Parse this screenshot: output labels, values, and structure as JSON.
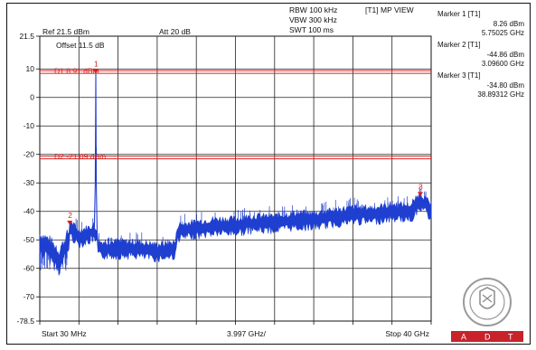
{
  "header": {
    "ref": "Ref 21.5 dBm",
    "att": "Att  20 dB",
    "rbw": "RBW 100 kHz",
    "vbw": "VBW 300 kHz",
    "swt": "SWT 100 ms",
    "trace_mode": "[T1] MP VIEW",
    "offset": "Offset 11.5 dB"
  },
  "markers": [
    {
      "title": "Marker 1 [T1]",
      "level": "8.26 dBm",
      "freq": "5.75025 GHz",
      "label": "1",
      "x_ghz": 5.75,
      "y_dbm": 8.26
    },
    {
      "title": "Marker 2 [T1]",
      "level": "-44.86 dBm",
      "freq": "3.09600 GHz",
      "label": "2",
      "x_ghz": 3.096,
      "y_dbm": -44.86
    },
    {
      "title": "Marker 3 [T1]",
      "level": "-34.80 dBm",
      "freq": "38.89312 GHz",
      "label": "3",
      "x_ghz": 38.89,
      "y_dbm": -34.8
    }
  ],
  "chart_data": {
    "type": "line",
    "xlim": [
      0.03,
      40
    ],
    "ylim": [
      -78.5,
      21.5
    ],
    "yticks": [
      21.5,
      10,
      0,
      -10,
      -20,
      -30,
      -40,
      -50,
      -60,
      -70,
      -78.5
    ],
    "ytick_labels": [
      "21.5",
      "10",
      "0",
      "-10",
      "-20",
      "-30",
      "-40",
      "-50",
      "-60",
      "-70",
      "-78.5"
    ],
    "x_start_label": "Start 30 MHz",
    "x_div_label": "3.997 GHz/",
    "x_stop_label": "Stop 40 GHz",
    "grid": true,
    "limit_lines": [
      {
        "name": "D1 8.91 dBm",
        "value": 8.91
      },
      {
        "name": "D2 -21.09 dBm",
        "value": -21.09
      }
    ],
    "series": [
      {
        "values_x": [
          0.03,
          1.0,
          2.0,
          3.0,
          3.096,
          4.0,
          5.0,
          5.6,
          5.75,
          5.9,
          6.5,
          8.0,
          10.0,
          12.0,
          13.9,
          14.1,
          16.0,
          18.0,
          20.0,
          22.0,
          24.0,
          26.0,
          28.0,
          30.0,
          32.0,
          34.0,
          36.0,
          38.0,
          38.89,
          40.0
        ],
        "values_y": [
          -50,
          -52,
          -56,
          -49,
          -44.86,
          -48,
          -47,
          -46,
          8.26,
          -52,
          -52,
          -52,
          -52,
          -53,
          -52,
          -46,
          -45,
          -44,
          -44,
          -43,
          -43,
          -42,
          -42,
          -41,
          -40,
          -40,
          -39,
          -39,
          -34.8,
          -39
        ]
      }
    ]
  }
}
